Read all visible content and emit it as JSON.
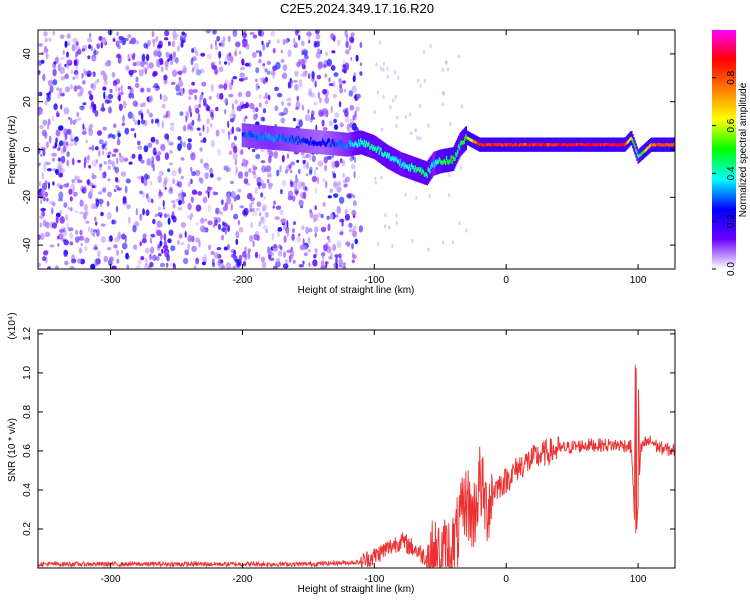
{
  "title": "C2E5.2024.349.17.16.R20",
  "chart_data": [
    {
      "type": "heatmap",
      "xlabel": "Height of straight line (km)",
      "ylabel": "Frequency (Hz)",
      "xlim": [
        -355,
        128
      ],
      "ylim": [
        -50,
        50
      ],
      "xticks": [
        -300,
        -200,
        -100,
        0,
        100
      ],
      "yticks": [
        -40,
        -20,
        0,
        20,
        40
      ],
      "colorbar": {
        "label": "Normalized spectral amplitude",
        "range": [
          0,
          1
        ],
        "ticks": [
          "0.0",
          "0.2",
          "0.4",
          "0.6",
          "0.8"
        ],
        "colormap": [
          "#ffffff",
          "#6a00ff",
          "#0000ff",
          "#00ffff",
          "#00ff00",
          "#ffff00",
          "#ff7f00",
          "#ff0000",
          "#ff00ff"
        ]
      },
      "ridge": {
        "x": [
          -200,
          -180,
          -160,
          -140,
          -120,
          -110,
          -100,
          -90,
          -80,
          -70,
          -60,
          -55,
          -50,
          -40,
          -35,
          -30,
          -20,
          0,
          20,
          40,
          60,
          80,
          90,
          95,
          100,
          110,
          128
        ],
        "y": [
          6,
          5,
          4,
          3,
          2,
          3,
          1,
          -3,
          -6,
          -8,
          -10,
          -6,
          -5,
          -4,
          2,
          5,
          2,
          2,
          2,
          2,
          2,
          2,
          2,
          5,
          -3,
          2,
          2
        ],
        "amplitude": [
          0.3,
          0.35,
          0.3,
          0.25,
          0.35,
          0.45,
          0.45,
          0.45,
          0.4,
          0.45,
          0.5,
          0.35,
          0.5,
          0.55,
          0.45,
          0.6,
          0.9,
          0.9,
          0.9,
          0.95,
          0.95,
          0.95,
          0.9,
          0.6,
          0.4,
          0.85,
          0.9
        ]
      },
      "noise_region_x": [
        -355,
        -110
      ]
    },
    {
      "type": "line",
      "xlabel": "Height of straight line (km)",
      "ylabel": "SNR (10 * v/v)",
      "y_multiplier": "(x10⁴)",
      "xlim": [
        -355,
        128
      ],
      "ylim": [
        0,
        1.22
      ],
      "xticks": [
        -300,
        -200,
        -100,
        0,
        100
      ],
      "yticks": [
        "0.2",
        "0.4",
        "0.6",
        "0.8",
        "1.0",
        "1.2"
      ],
      "color": "#ee3030",
      "series": [
        {
          "x": [
            -355,
            -300,
            -250,
            -200,
            -150,
            -110,
            -100,
            -90,
            -80,
            -70,
            -60,
            -50,
            -40,
            -30,
            -25,
            -20,
            -15,
            -10,
            0,
            10,
            20,
            30,
            40,
            50,
            60,
            70,
            80,
            90,
            95,
            98,
            100,
            102,
            105,
            110,
            115,
            120,
            128
          ],
          "y": [
            0.02,
            0.02,
            0.02,
            0.02,
            0.02,
            0.03,
            0.06,
            0.1,
            0.14,
            0.1,
            0.05,
            0.05,
            0.1,
            0.35,
            0.25,
            0.45,
            0.3,
            0.4,
            0.45,
            0.52,
            0.56,
            0.59,
            0.61,
            0.62,
            0.63,
            0.63,
            0.63,
            0.63,
            0.62,
            0.15,
            0.3,
            0.6,
            0.64,
            0.65,
            0.62,
            0.61,
            0.6
          ]
        }
      ]
    }
  ]
}
